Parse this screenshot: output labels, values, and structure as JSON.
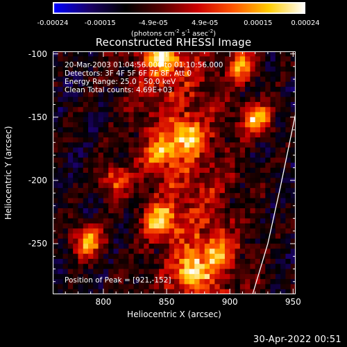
{
  "colorbar": {
    "ticks": [
      "-0.00024",
      "-0.00015",
      "-4.9e-05",
      "4.9e-05",
      "0.00015",
      "0.00024"
    ],
    "tick_values": [
      -0.00024,
      -0.00015,
      -4.9e-05,
      4.9e-05,
      0.00015,
      0.00024
    ],
    "units_text": "(photons cm",
    "units_sup1": "-2",
    "units_mid": " s",
    "units_sup2": "-1",
    "units_end": " asec",
    "units_sup3": "-2",
    "units_close": ")",
    "colors": [
      "#0000ff",
      "#1a0066",
      "#000000",
      "#550000",
      "#cc0000",
      "#ff5500",
      "#ffcc00",
      "#ffffff"
    ]
  },
  "chart_data": {
    "type": "heatmap",
    "title": "Reconstructed RHESSI Image",
    "xlabel": "Heliocentric X (arcsec)",
    "ylabel": "Heliocentric Y (arcsec)",
    "xlim": [
      760,
      952
    ],
    "ylim": [
      -290,
      -98
    ],
    "x_ticks": [
      800,
      850,
      900,
      950
    ],
    "y_ticks": [
      -100,
      -150,
      -200,
      -250
    ],
    "annotations": [
      "20-Mar-2003 01:04:56.000 to 01:10:56.000",
      "Detectors: 3F 4F 5F 6F 7F 8F, Att 0",
      "Energy Range: 25.0 - 50.0 keV",
      "Clean     Total counts: 4.69E+03"
    ],
    "peak_label": "Position of Peak = [921,-152]",
    "peak": [
      921,
      -152
    ],
    "bright_sources": [
      {
        "x": 921,
        "y": -152,
        "intensity": 1.0
      },
      {
        "x": 787,
        "y": -248,
        "intensity": 0.95
      },
      {
        "x": 845,
        "y": -232,
        "intensity": 0.85
      },
      {
        "x": 870,
        "y": -272,
        "intensity": 0.85
      },
      {
        "x": 848,
        "y": -105,
        "intensity": 0.8
      },
      {
        "x": 866,
        "y": -165,
        "intensity": 0.75
      },
      {
        "x": 910,
        "y": -110,
        "intensity": 0.8
      },
      {
        "x": 808,
        "y": -200,
        "intensity": 0.7
      },
      {
        "x": 845,
        "y": -180,
        "intensity": 0.7
      },
      {
        "x": 890,
        "y": -255,
        "intensity": 0.65
      }
    ],
    "limb_arc": [
      [
        952,
        -147
      ],
      [
        940,
        -205
      ],
      [
        930,
        -250
      ],
      [
        918,
        -290
      ]
    ]
  },
  "timestamp": "30-Apr-2022 00:51"
}
